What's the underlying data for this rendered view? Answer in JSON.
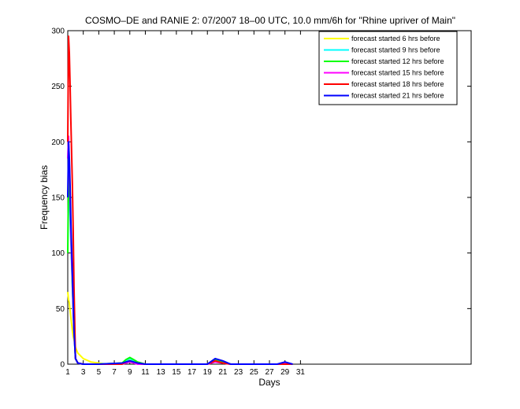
{
  "chart_data": {
    "type": "line",
    "title": "COSMO–DE and RANIE 2: 07/2007 18–00 UTC, 10.0 mm/6h for \"Rhine upriver of Main\"",
    "xlabel": "Days",
    "ylabel": "Frequency bias",
    "xlim": [
      1,
      53
    ],
    "ylim": [
      0,
      300
    ],
    "xticks": [
      1,
      3,
      5,
      7,
      9,
      11,
      13,
      15,
      17,
      19,
      21,
      23,
      25,
      27,
      29,
      31
    ],
    "yticks": [
      0,
      50,
      100,
      150,
      200,
      250,
      300
    ],
    "grid": false,
    "legend_position": "top-right",
    "series": [
      {
        "name": "forecast started 6 hrs before",
        "color": "#ffff00",
        "x": [
          1,
          1.1,
          1.2,
          1.3,
          1.4,
          1.5,
          1.6,
          1.7,
          1.8,
          2,
          2.3,
          3,
          4,
          5,
          6,
          7,
          8,
          8.5,
          9,
          9.5,
          10,
          11,
          12,
          19,
          20,
          21,
          22,
          23,
          28,
          29,
          30
        ],
        "y": [
          65,
          58,
          55,
          48,
          42,
          36,
          30,
          25,
          22,
          15,
          10,
          5,
          2,
          1,
          0,
          0,
          1,
          2,
          4,
          2,
          1,
          0,
          0,
          0,
          3,
          1,
          0,
          0,
          0,
          0,
          0
        ]
      },
      {
        "name": "forecast started 9 hrs before",
        "color": "#00ffff",
        "x": [
          1,
          1.1,
          1.2,
          1.3,
          1.4,
          1.5,
          1.6,
          1.7,
          1.8,
          2,
          2.3,
          3,
          4,
          5,
          8,
          8.5,
          9,
          9.5,
          10,
          11,
          12,
          19,
          20,
          21,
          22,
          23,
          28,
          29,
          30
        ],
        "y": [
          150,
          165,
          150,
          130,
          110,
          90,
          70,
          50,
          30,
          5,
          1,
          0,
          0,
          0,
          1,
          3,
          5,
          3,
          1,
          0,
          0,
          0,
          3,
          2,
          0,
          0,
          0,
          0,
          0
        ]
      },
      {
        "name": "forecast started 12 hrs before",
        "color": "#00ff00",
        "x": [
          1,
          1.1,
          1.2,
          1.3,
          1.4,
          1.5,
          1.6,
          1.7,
          1.8,
          2,
          2.3,
          3,
          4,
          5,
          8,
          8.5,
          9,
          9.5,
          10,
          11,
          12,
          19,
          20,
          21,
          22,
          23,
          28,
          29,
          30
        ],
        "y": [
          100,
          170,
          160,
          145,
          120,
          95,
          70,
          50,
          30,
          5,
          1,
          0,
          0,
          0,
          1,
          4,
          6,
          4,
          2,
          0,
          0,
          0,
          4,
          2,
          0,
          0,
          0,
          0,
          0
        ]
      },
      {
        "name": "forecast started 15 hrs before",
        "color": "#ff00ff",
        "x": [
          1,
          1.1,
          1.2,
          1.3,
          1.4,
          1.5,
          1.6,
          1.7,
          1.8,
          2,
          2.3,
          3,
          4,
          5,
          8,
          8.5,
          9,
          9.5,
          10,
          11,
          12,
          19,
          20,
          21,
          22,
          23,
          28,
          29,
          30
        ],
        "y": [
          185,
          205,
          180,
          150,
          120,
          95,
          75,
          50,
          30,
          5,
          1,
          0,
          0,
          0,
          0,
          1,
          2,
          1,
          0,
          0,
          0,
          0,
          2,
          1,
          0,
          0,
          0,
          1,
          0
        ]
      },
      {
        "name": "forecast started 18 hrs before",
        "color": "#ff0000",
        "x": [
          1,
          1.1,
          1.2,
          1.3,
          1.4,
          1.5,
          1.6,
          1.7,
          1.8,
          2,
          2.3,
          3,
          4,
          5,
          8,
          8.5,
          9,
          9.5,
          10,
          11,
          12,
          19,
          20,
          21,
          22,
          23,
          28,
          29,
          30
        ],
        "y": [
          200,
          295,
          280,
          250,
          220,
          190,
          160,
          120,
          70,
          5,
          1,
          0,
          0,
          0,
          0,
          2,
          3,
          2,
          1,
          0,
          0,
          0,
          3,
          1,
          0,
          0,
          0,
          0,
          0
        ]
      },
      {
        "name": "forecast started 21 hrs before",
        "color": "#0000ff",
        "x": [
          1,
          1.1,
          1.2,
          1.3,
          1.4,
          1.5,
          1.6,
          1.7,
          1.8,
          2,
          2.3,
          3,
          4,
          5,
          8,
          8.5,
          9,
          9.5,
          10,
          11,
          12,
          19,
          20,
          21,
          22,
          23,
          28,
          29,
          30
        ],
        "y": [
          150,
          200,
          185,
          160,
          130,
          105,
          80,
          55,
          30,
          5,
          1,
          0,
          0,
          0,
          1,
          2,
          3,
          2,
          1,
          0,
          0,
          0,
          5,
          3,
          0,
          0,
          0,
          2,
          0
        ]
      }
    ]
  }
}
